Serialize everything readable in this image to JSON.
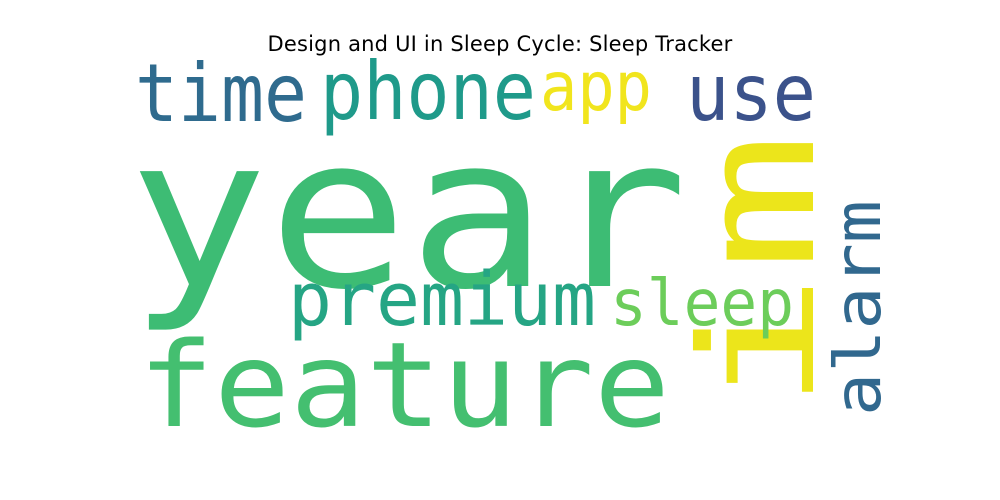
{
  "title": "Design and UI in Sleep Cycle: Sleep Tracker",
  "words": [
    {
      "text": "year",
      "color": "#3dbc74"
    },
    {
      "text": "feature",
      "color": "#44bf70"
    },
    {
      "text": "im",
      "color": "#ece51b"
    },
    {
      "text": "time",
      "color": "#2f6b8e"
    },
    {
      "text": "phone",
      "color": "#1f9a8a"
    },
    {
      "text": "app",
      "color": "#f1e51d"
    },
    {
      "text": "use",
      "color": "#3b528b"
    },
    {
      "text": "premium",
      "color": "#25a584"
    },
    {
      "text": "sleep",
      "color": "#6ccd5a"
    },
    {
      "text": "alarm",
      "color": "#31688e"
    }
  ]
}
